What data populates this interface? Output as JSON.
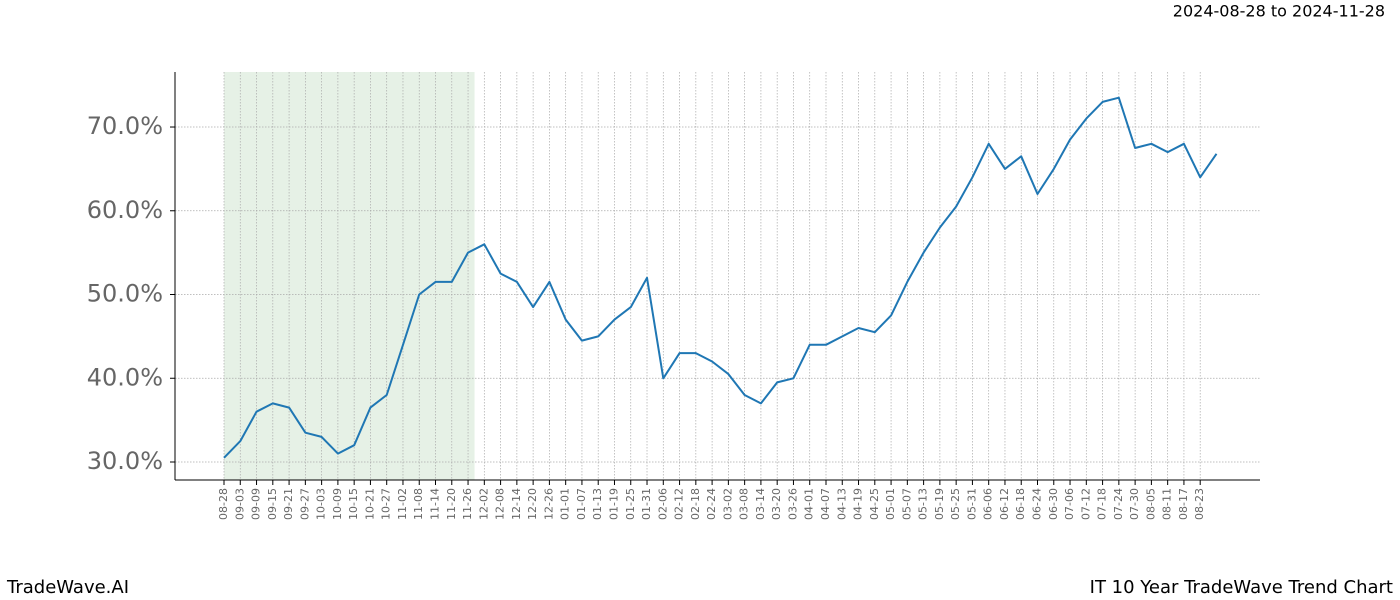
{
  "chart_data": {
    "type": "line",
    "subtitle": "2024-08-28 to 2024-11-28",
    "brand": "TradeWave.AI",
    "title": "IT 10 Year TradeWave Trend Chart",
    "categories": [
      "08-28",
      "09-03",
      "09-09",
      "09-15",
      "09-21",
      "09-27",
      "10-03",
      "10-09",
      "10-15",
      "10-21",
      "10-27",
      "11-02",
      "11-08",
      "11-14",
      "11-20",
      "11-26",
      "12-02",
      "12-08",
      "12-14",
      "12-20",
      "12-26",
      "01-01",
      "01-07",
      "01-13",
      "01-19",
      "01-25",
      "01-31",
      "02-06",
      "02-12",
      "02-18",
      "02-24",
      "03-02",
      "03-08",
      "03-14",
      "03-20",
      "03-26",
      "04-01",
      "04-07",
      "04-13",
      "04-19",
      "04-25",
      "05-01",
      "05-07",
      "05-13",
      "05-19",
      "05-25",
      "05-31",
      "06-06",
      "06-12",
      "06-18",
      "06-24",
      "06-30",
      "07-06",
      "07-12",
      "07-18",
      "07-24",
      "07-30",
      "08-05",
      "08-11",
      "08-17",
      "08-23",
      null
    ],
    "series": [
      {
        "color": "#1f77b4",
        "values": [
          30.5,
          32.5,
          36,
          37,
          36.5,
          33.5,
          33,
          31,
          32,
          36.5,
          38,
          44,
          50,
          51.5,
          51.5,
          55,
          56,
          52.5,
          51.5,
          48.5,
          51.5,
          47,
          44.5,
          45,
          47,
          48.5,
          52,
          40,
          43,
          43,
          42,
          40.5,
          38,
          37,
          39.5,
          40,
          44,
          44,
          45,
          46,
          45.5,
          47.5,
          51.5,
          55,
          58,
          60.5,
          64,
          68,
          65,
          66.5,
          62,
          65,
          68.5,
          71,
          73,
          73.5,
          67.5,
          68,
          67,
          68,
          64,
          66.8
        ]
      }
    ],
    "ylim": [
      27.85,
      76.57
    ],
    "yticks": [
      {
        "value": 30,
        "label": "30.0%"
      },
      {
        "value": 40,
        "label": "40.0%"
      },
      {
        "value": 50,
        "label": "50.0%"
      },
      {
        "value": 60,
        "label": "60.0%"
      },
      {
        "value": 70,
        "label": "70.0%"
      }
    ],
    "grid": true,
    "highlight": {
      "from": 0,
      "to": 15.4,
      "color": "#e6f1e6"
    }
  }
}
